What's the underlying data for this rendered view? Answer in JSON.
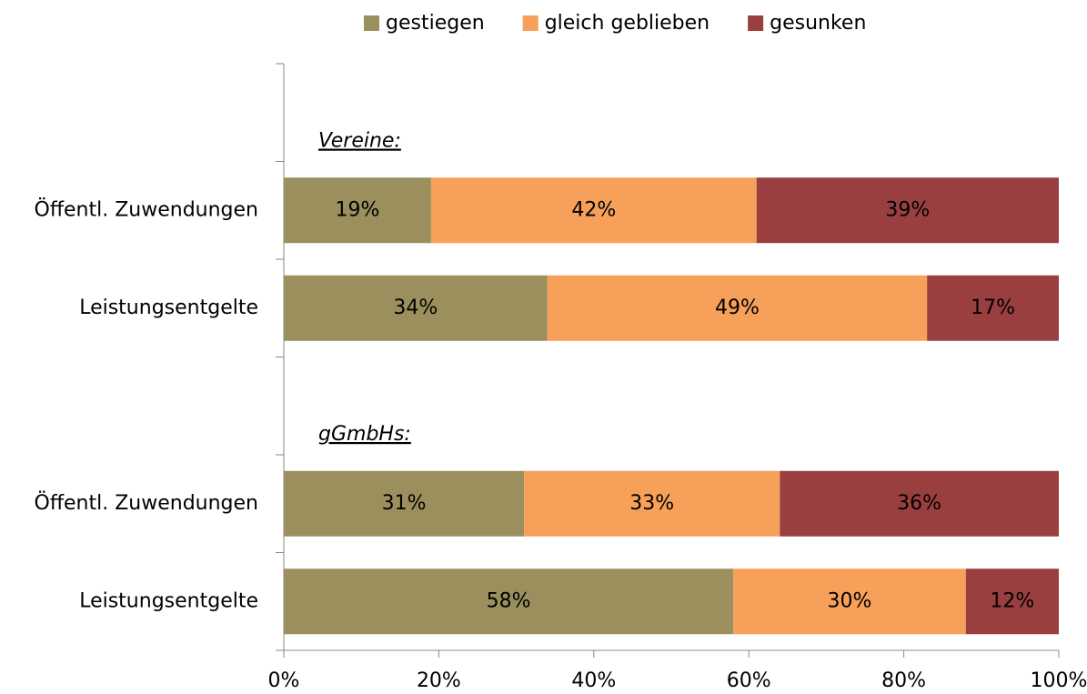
{
  "chart_data": {
    "type": "stacked_bar_horizontal",
    "categories": [
      null,
      "Öffentl. Zuwendungen",
      "Leistungsentgelte",
      null,
      "Öffentl. Zuwendungen",
      "Leistungsentgelte"
    ],
    "annotations": [
      "Vereine:",
      "gGmbHs:"
    ],
    "series": [
      {
        "name": "gestiegen",
        "color": "#9b8f5e",
        "values": [
          null,
          19,
          34,
          null,
          31,
          58
        ],
        "value_labels": [
          null,
          "19%",
          "34%",
          null,
          "31%",
          "58%"
        ]
      },
      {
        "name": "gleich geblieben",
        "color": "#f6a05a",
        "values": [
          null,
          42,
          49,
          null,
          33,
          30
        ],
        "value_labels": [
          null,
          "42%",
          "49%",
          null,
          "33%",
          "30%"
        ]
      },
      {
        "name": "gesunken",
        "color": "#9a3f3f",
        "values": [
          null,
          39,
          17,
          null,
          36,
          12
        ],
        "value_labels": [
          null,
          "39%",
          "17%",
          null,
          "36%",
          "12%"
        ]
      }
    ],
    "xlim": [
      0,
      100
    ],
    "xticks": [
      {
        "value": 0,
        "label": "0%"
      },
      {
        "value": 20,
        "label": "20%"
      },
      {
        "value": 40,
        "label": "40%"
      },
      {
        "value": 60,
        "label": "60%"
      },
      {
        "value": 80,
        "label": "80%"
      },
      {
        "value": 100,
        "label": "100%"
      }
    ],
    "legend": "top"
  }
}
